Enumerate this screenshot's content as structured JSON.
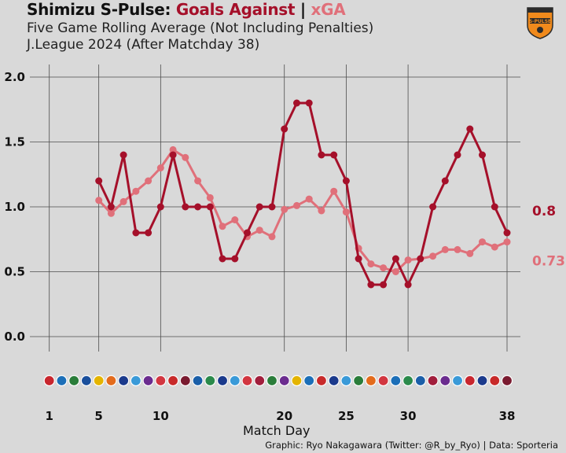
{
  "header": {
    "team": "Shimizu S-Pulse:",
    "goals_against": "Goals Against",
    "separator": "|",
    "xga": "xGA",
    "subtitle1": "Five Game Rolling Average (Not Including Penalties)",
    "subtitle2": "J.League 2024 (After Matchday 38)"
  },
  "logo": {
    "text": "S-PULSE",
    "colors": {
      "orange": "#f08a1c",
      "dark": "#2b2b2b"
    }
  },
  "footer": "Graphic: Ryo Nakagawara (Twitter: @R_by_Ryo) | Data: Sporteria",
  "colors": {
    "goals_against": "#a5102a",
    "xga": "#e0707a",
    "grid": "#4d4d4d",
    "background": "#d9d9d9"
  },
  "chart_data": {
    "type": "line",
    "xlabel": "Match Day",
    "ylabel": "",
    "xlim": [
      0,
      38.7
    ],
    "ylim": [
      0,
      2.0
    ],
    "y_ticks": [
      "0.0",
      "0.5",
      "1.0",
      "1.5",
      "2.0"
    ],
    "x_ticks": [
      1,
      5,
      10,
      20,
      25,
      30,
      38
    ],
    "grid": true,
    "series": [
      {
        "name": "Goals Against",
        "start_matchday": 5,
        "values": [
          1.2,
          1.0,
          1.4,
          0.8,
          0.8,
          1.0,
          1.4,
          1.0,
          1.0,
          1.0,
          0.6,
          0.6,
          0.8,
          1.0,
          1.0,
          1.6,
          1.8,
          1.8,
          1.4,
          1.4,
          1.2,
          0.6,
          0.4,
          0.4,
          0.6,
          0.4,
          0.6,
          1.0,
          1.2,
          1.4,
          1.6,
          1.4,
          1.0,
          0.8
        ],
        "end_label": "0.8"
      },
      {
        "name": "xGA",
        "start_matchday": 5,
        "values": [
          1.05,
          0.95,
          1.04,
          1.12,
          1.2,
          1.3,
          1.44,
          1.38,
          1.2,
          1.07,
          0.85,
          0.9,
          0.77,
          0.82,
          0.77,
          0.98,
          1.01,
          1.06,
          0.97,
          1.12,
          0.96,
          0.68,
          0.56,
          0.53,
          0.5,
          0.59,
          0.6,
          0.62,
          0.67,
          0.67,
          0.64,
          0.73,
          0.69,
          0.73
        ],
        "end_label": "0.73"
      }
    ],
    "opponent_badge_colors": [
      "#c8262e",
      "#1c6fb8",
      "#2a7d3a",
      "#1a4f9c",
      "#e4b400",
      "#e36b1c",
      "#1b3a8c",
      "#3a9ad8",
      "#6b2c8f",
      "#d23640",
      "#c82a2a",
      "#7a1b30",
      "#1b5fa8",
      "#2b8a4b",
      "#1b3a8c",
      "#3a9ad8",
      "#d23640",
      "#a11e3c",
      "#2a7d3a",
      "#6b2c8f",
      "#e4b400",
      "#1c6fb8",
      "#c82a2a",
      "#1b3a8c",
      "#3a9ad8",
      "#2a7d3a",
      "#e36b1c",
      "#d23640",
      "#1c6fb8",
      "#2b8a4b",
      "#1b5fa8",
      "#a11e3c",
      "#6b2c8f",
      "#3a9ad8",
      "#c8262e",
      "#1b3a8c",
      "#c82a2a",
      "#7a1b30"
    ]
  }
}
